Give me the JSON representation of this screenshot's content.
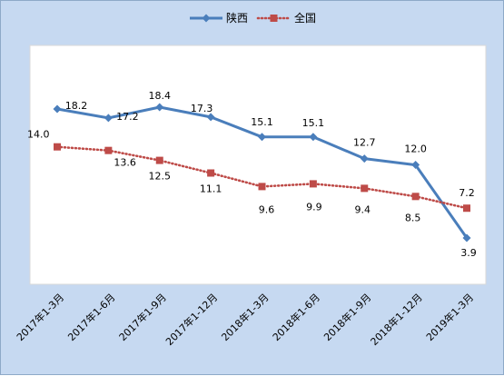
{
  "chart_data": {
    "type": "line",
    "categories": [
      "2017年1-3月",
      "2017年1-6月",
      "2017年1-9月",
      "2017年1-12月",
      "2018年1-3月",
      "2018年1-6月",
      "2018年1-9月",
      "2018年1-12月",
      "2019年1-3月"
    ],
    "series": [
      {
        "name": "陕西",
        "values": [
          18.2,
          17.2,
          18.4,
          17.3,
          15.1,
          15.1,
          12.7,
          12.0,
          3.9
        ],
        "labels": [
          "18.2",
          "17.2",
          "18.4",
          "17.3",
          "15.1",
          "15.1",
          "12.7",
          "12.0",
          "3.9"
        ],
        "color": "#4a7ebb",
        "style": "solid",
        "marker": "diamond"
      },
      {
        "name": "全国",
        "values": [
          14.0,
          13.6,
          12.5,
          11.1,
          9.6,
          9.9,
          9.4,
          8.5,
          7.2
        ],
        "labels": [
          "14.0",
          "13.6",
          "12.5",
          "11.1",
          "9.6",
          "9.9",
          "9.4",
          "8.5",
          "7.2"
        ],
        "color": "#be4b48",
        "style": "dotted",
        "marker": "square"
      }
    ],
    "title": "",
    "xlabel": "",
    "ylabel": "",
    "ylim": [
      0,
      25
    ],
    "legend_position": "top-center",
    "grid": false,
    "background": "#c6d9f1",
    "plot_background": "#ffffff"
  }
}
